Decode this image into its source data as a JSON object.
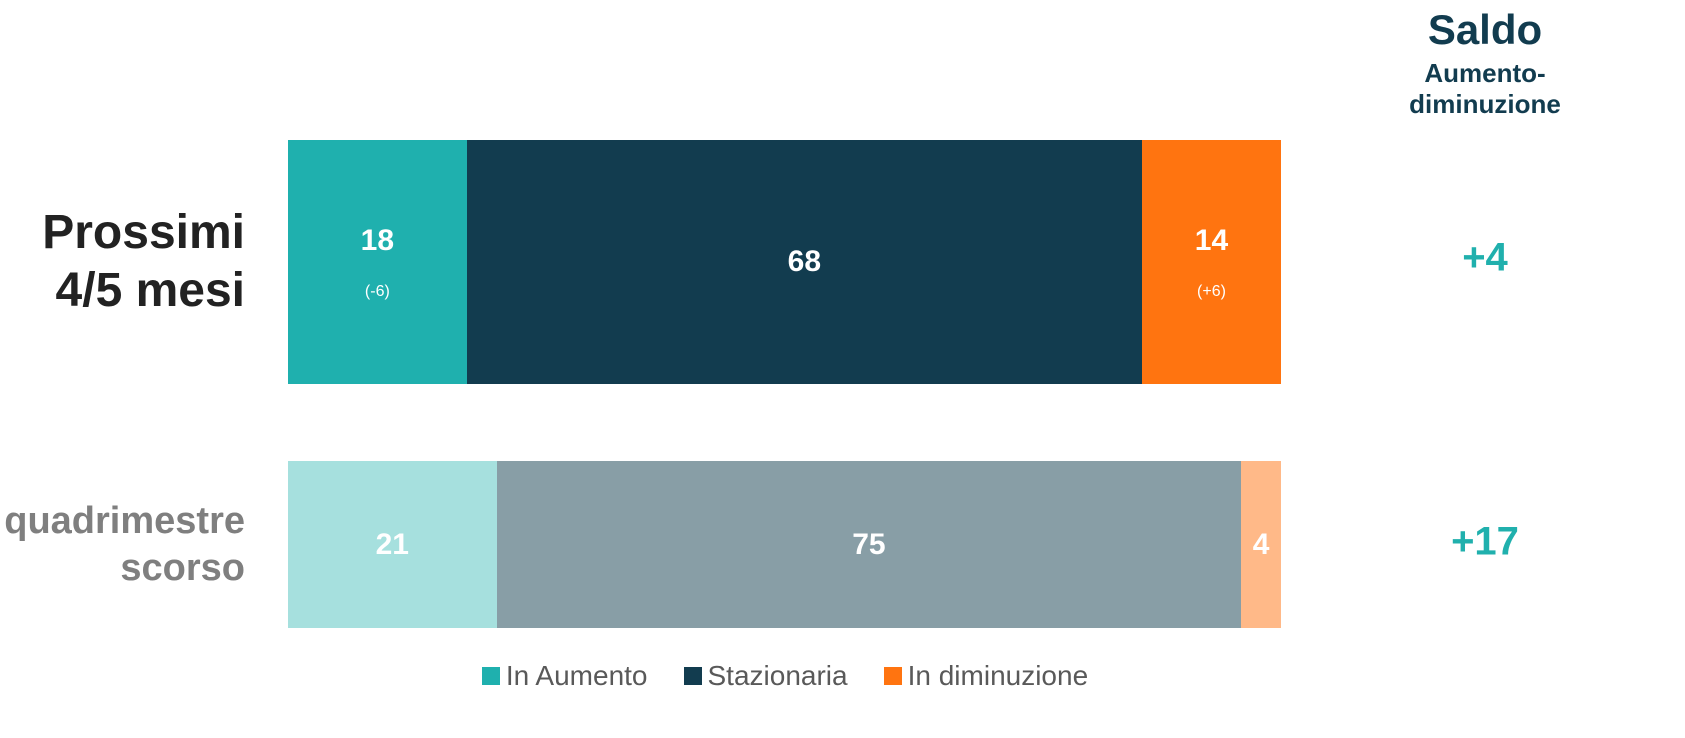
{
  "chart_data": {
    "type": "stacked_barh",
    "categories": [
      "Prossimi 4/5 mesi",
      "quadrimestre scorso"
    ],
    "xlim": [
      0,
      100
    ],
    "series": [
      {
        "name": "In Aumento",
        "color": "#1fb0ae",
        "colors": [
          "#1fb0ae",
          "#a6e0de"
        ],
        "values": [
          18,
          21
        ],
        "changes": [
          -6,
          null
        ],
        "change_labels": [
          "(-6)",
          null
        ]
      },
      {
        "name": "Stazionaria",
        "color": "#123c4f",
        "colors": [
          "#123c4f",
          "#889ea6"
        ],
        "values": [
          68,
          75
        ]
      },
      {
        "name": "In diminuzione",
        "color": "#ff7410",
        "colors": [
          "#ff7410",
          "#ffb988"
        ],
        "values": [
          14,
          4
        ],
        "changes": [
          6,
          null
        ],
        "change_labels": [
          "(+6)",
          null
        ]
      }
    ],
    "saldo": {
      "title": "Saldo",
      "subtitle": "Aumento-diminuzione",
      "values": [
        4,
        17
      ],
      "value_labels": [
        "+4",
        "+17"
      ]
    }
  }
}
